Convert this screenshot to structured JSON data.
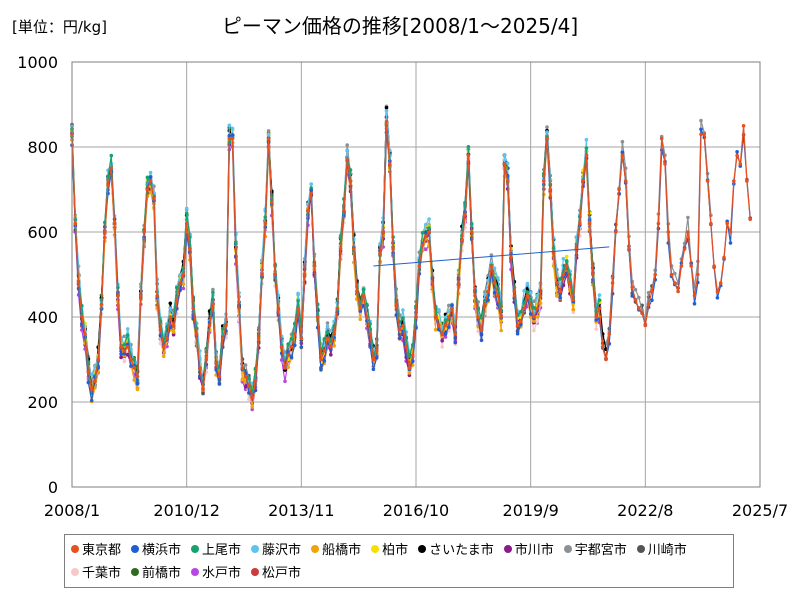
{
  "chart_data": {
    "type": "line",
    "title": "ピーマン価格の推移[2008/1～2025/4]",
    "unit_label": "[単位：円/kg]",
    "xlabel": "",
    "ylabel": "",
    "ylim": [
      0,
      1000
    ],
    "x_range": [
      "2008-01",
      "2025-07"
    ],
    "y_ticks": [
      "0",
      "200",
      "400",
      "600",
      "800",
      "1000"
    ],
    "x_ticks": [
      {
        "label": "2008/1",
        "x": "2008-01"
      },
      {
        "label": "2010/12",
        "x": "2010-12"
      },
      {
        "label": "2013/11",
        "x": "2013-11"
      },
      {
        "label": "2016/10",
        "x": "2016-10"
      },
      {
        "label": "2019/9",
        "x": "2019-09"
      },
      {
        "label": "2022/8",
        "x": "2022-08"
      },
      {
        "label": "2025/7",
        "x": "2025-07"
      }
    ],
    "grid": true,
    "legend_position": "bottom",
    "base_series": {
      "name": "東京都",
      "points": [
        [
          "2008-01",
          830
        ],
        [
          "2008-02",
          620
        ],
        [
          "2008-03",
          480
        ],
        [
          "2008-04",
          400
        ],
        [
          "2008-05",
          360
        ],
        [
          "2008-06",
          270
        ],
        [
          "2008-07",
          230
        ],
        [
          "2008-08",
          250
        ],
        [
          "2008-09",
          300
        ],
        [
          "2008-10",
          430
        ],
        [
          "2008-11",
          600
        ],
        [
          "2008-12",
          710
        ],
        [
          "2009-01",
          750
        ],
        [
          "2009-02",
          620
        ],
        [
          "2009-03",
          450
        ],
        [
          "2009-04",
          330
        ],
        [
          "2009-05",
          320
        ],
        [
          "2009-06",
          330
        ],
        [
          "2009-07",
          300
        ],
        [
          "2009-08",
          280
        ],
        [
          "2009-09",
          260
        ],
        [
          "2009-10",
          450
        ],
        [
          "2009-11",
          600
        ],
        [
          "2009-12",
          700
        ],
        [
          "2010-01",
          720
        ],
        [
          "2010-02",
          680
        ],
        [
          "2010-03",
          450
        ],
        [
          "2010-04",
          370
        ],
        [
          "2010-05",
          330
        ],
        [
          "2010-06",
          350
        ],
        [
          "2010-07",
          400
        ],
        [
          "2010-08",
          380
        ],
        [
          "2010-09",
          440
        ],
        [
          "2010-10",
          480
        ],
        [
          "2010-11",
          500
        ],
        [
          "2010-12",
          620
        ],
        [
          "2011-01",
          560
        ],
        [
          "2011-02",
          420
        ],
        [
          "2011-03",
          360
        ],
        [
          "2011-04",
          280
        ],
        [
          "2011-05",
          230
        ],
        [
          "2011-06",
          300
        ],
        [
          "2011-07",
          380
        ],
        [
          "2011-08",
          430
        ],
        [
          "2011-09",
          290
        ],
        [
          "2011-10",
          260
        ],
        [
          "2011-11",
          350
        ],
        [
          "2011-12",
          380
        ],
        [
          "2012-01",
          820
        ],
        [
          "2012-02",
          820
        ],
        [
          "2012-03",
          560
        ],
        [
          "2012-04",
          420
        ],
        [
          "2012-05",
          280
        ],
        [
          "2012-06",
          260
        ],
        [
          "2012-07",
          240
        ],
        [
          "2012-08",
          210
        ],
        [
          "2012-09",
          250
        ],
        [
          "2012-10",
          350
        ],
        [
          "2012-11",
          500
        ],
        [
          "2012-12",
          620
        ],
        [
          "2013-01",
          820
        ],
        [
          "2013-02",
          670
        ],
        [
          "2013-03",
          500
        ],
        [
          "2013-04",
          420
        ],
        [
          "2013-05",
          330
        ],
        [
          "2013-06",
          280
        ],
        [
          "2013-07",
          310
        ],
        [
          "2013-08",
          330
        ],
        [
          "2013-09",
          360
        ],
        [
          "2013-10",
          420
        ],
        [
          "2013-11",
          350
        ],
        [
          "2013-12",
          500
        ],
        [
          "2014-01",
          650
        ],
        [
          "2014-02",
          690
        ],
        [
          "2014-03",
          520
        ],
        [
          "2014-04",
          400
        ],
        [
          "2014-05",
          300
        ],
        [
          "2014-06",
          320
        ],
        [
          "2014-07",
          350
        ],
        [
          "2014-08",
          330
        ],
        [
          "2014-09",
          360
        ],
        [
          "2014-10",
          420
        ],
        [
          "2014-11",
          560
        ],
        [
          "2014-12",
          650
        ],
        [
          "2015-01",
          770
        ],
        [
          "2015-02",
          720
        ],
        [
          "2015-03",
          560
        ],
        [
          "2015-04",
          460
        ],
        [
          "2015-05",
          420
        ],
        [
          "2015-06",
          450
        ],
        [
          "2015-07",
          400
        ],
        [
          "2015-08",
          360
        ],
        [
          "2015-09",
          300
        ],
        [
          "2015-10",
          320
        ],
        [
          "2015-11",
          550
        ],
        [
          "2015-12",
          600
        ],
        [
          "2016-01",
          860
        ],
        [
          "2016-02",
          760
        ],
        [
          "2016-03",
          560
        ],
        [
          "2016-04",
          430
        ],
        [
          "2016-05",
          370
        ],
        [
          "2016-06",
          380
        ],
        [
          "2016-07",
          330
        ],
        [
          "2016-08",
          280
        ],
        [
          "2016-09",
          310
        ],
        [
          "2016-10",
          400
        ],
        [
          "2016-11",
          520
        ],
        [
          "2016-12",
          570
        ],
        [
          "2017-01",
          590
        ],
        [
          "2017-02",
          600
        ],
        [
          "2017-03",
          480
        ],
        [
          "2017-04",
          400
        ],
        [
          "2017-05",
          380
        ],
        [
          "2017-06",
          360
        ],
        [
          "2017-07",
          380
        ],
        [
          "2017-08",
          400
        ],
        [
          "2017-09",
          420
        ],
        [
          "2017-10",
          360
        ],
        [
          "2017-11",
          480
        ],
        [
          "2017-12",
          580
        ],
        [
          "2018-01",
          640
        ],
        [
          "2018-02",
          780
        ],
        [
          "2018-03",
          600
        ],
        [
          "2018-04",
          450
        ],
        [
          "2018-05",
          400
        ],
        [
          "2018-06",
          370
        ],
        [
          "2018-07",
          430
        ],
        [
          "2018-08",
          460
        ],
        [
          "2018-09",
          520
        ],
        [
          "2018-10",
          480
        ],
        [
          "2018-11",
          450
        ],
        [
          "2018-12",
          400
        ],
        [
          "2019-01",
          760
        ],
        [
          "2019-02",
          720
        ],
        [
          "2019-03",
          540
        ],
        [
          "2019-04",
          460
        ],
        [
          "2019-05",
          380
        ],
        [
          "2019-06",
          390
        ],
        [
          "2019-07",
          420
        ],
        [
          "2019-08",
          450
        ],
        [
          "2019-09",
          430
        ],
        [
          "2019-10",
          400
        ],
        [
          "2019-11",
          420
        ],
        [
          "2019-12",
          450
        ],
        [
          "2020-01",
          720
        ],
        [
          "2020-02",
          820
        ],
        [
          "2020-03",
          700
        ],
        [
          "2020-04",
          550
        ],
        [
          "2020-05",
          480
        ],
        [
          "2020-06",
          460
        ],
        [
          "2020-07",
          500
        ],
        [
          "2020-08",
          520
        ],
        [
          "2020-09",
          480
        ],
        [
          "2020-10",
          440
        ],
        [
          "2020-11",
          560
        ],
        [
          "2020-12",
          620
        ],
        [
          "2021-01",
          720
        ],
        [
          "2021-02",
          780
        ],
        [
          "2021-03",
          620
        ],
        [
          "2021-04",
          500
        ],
        [
          "2021-05",
          400
        ],
        [
          "2021-06",
          420
        ],
        [
          "2021-07",
          330
        ],
        [
          "2021-08",
          300
        ],
        [
          "2021-09",
          360
        ],
        [
          "2021-10",
          480
        ],
        [
          "2021-11",
          600
        ],
        [
          "2021-12",
          700
        ],
        [
          "2022-01",
          780
        ],
        [
          "2022-02",
          720
        ],
        [
          "2022-03",
          560
        ],
        [
          "2022-04",
          470
        ],
        [
          "2022-05",
          440
        ],
        [
          "2022-06",
          420
        ],
        [
          "2022-07",
          410
        ],
        [
          "2022-08",
          380
        ],
        [
          "2022-09",
          430
        ],
        [
          "2022-10",
          460
        ],
        [
          "2022-11",
          500
        ],
        [
          "2022-12",
          620
        ],
        [
          "2023-01",
          820
        ],
        [
          "2023-02",
          760
        ],
        [
          "2023-03",
          600
        ],
        [
          "2023-04",
          500
        ],
        [
          "2023-05",
          480
        ],
        [
          "2023-06",
          460
        ],
        [
          "2023-07",
          520
        ],
        [
          "2023-08",
          560
        ],
        [
          "2023-09",
          600
        ],
        [
          "2023-10",
          520
        ],
        [
          "2023-11",
          450
        ],
        [
          "2023-12",
          500
        ],
        [
          "2024-01",
          830
        ],
        [
          "2024-02",
          830
        ],
        [
          "2024-03",
          720
        ],
        [
          "2024-04",
          620
        ],
        [
          "2024-05",
          520
        ],
        [
          "2024-06",
          460
        ],
        [
          "2024-07",
          480
        ],
        [
          "2024-08",
          540
        ],
        [
          "2024-09",
          620
        ],
        [
          "2024-10",
          600
        ],
        [
          "2024-11",
          720
        ],
        [
          "2024-12",
          780
        ],
        [
          "2025-01",
          760
        ],
        [
          "2025-02",
          850
        ],
        [
          "2025-03",
          720
        ],
        [
          "2025-04",
          630
        ]
      ]
    },
    "series": [
      {
        "name": "東京都",
        "color": "#e8501e",
        "offset": 0,
        "end": "2025-04"
      },
      {
        "name": "横浜市",
        "color": "#1f5fd1",
        "offset": -8,
        "end": "2025-04"
      },
      {
        "name": "上尾市",
        "color": "#16a36e",
        "offset": 10,
        "end": "2021-06"
      },
      {
        "name": "藤沢市",
        "color": "#5dc3ef",
        "offset": 22,
        "end": "2021-06"
      },
      {
        "name": "船橋市",
        "color": "#f0a30a",
        "offset": -12,
        "end": "2021-06"
      },
      {
        "name": "柏市",
        "color": "#f5e000",
        "offset": 6,
        "end": "2021-06"
      },
      {
        "name": "さいたま市",
        "color": "#000000",
        "offset": 14,
        "end": "2021-08"
      },
      {
        "name": "市川市",
        "color": "#8b1a8b",
        "offset": -6,
        "end": "2021-06"
      },
      {
        "name": "宇都宮市",
        "color": "#8c9196",
        "offset": 18,
        "end": "2024-04"
      },
      {
        "name": "川崎市",
        "color": "#555555",
        "offset": 4,
        "end": "2022-10"
      },
      {
        "name": "千葉市",
        "color": "#f6c8c8",
        "offset": -14,
        "end": "2021-06"
      },
      {
        "name": "前橋市",
        "color": "#2e6b22",
        "offset": 8,
        "end": "2021-06"
      },
      {
        "name": "水戸市",
        "color": "#b847e0",
        "offset": -16,
        "end": "2021-06"
      },
      {
        "name": "松戸市",
        "color": "#d03a3a",
        "offset": -4,
        "end": "2021-06"
      }
    ],
    "annotations": [
      {
        "type": "line",
        "color": "#1f5fd1",
        "from": [
          "2015-09",
          520
        ],
        "to": [
          "2021-09",
          565
        ]
      }
    ]
  }
}
